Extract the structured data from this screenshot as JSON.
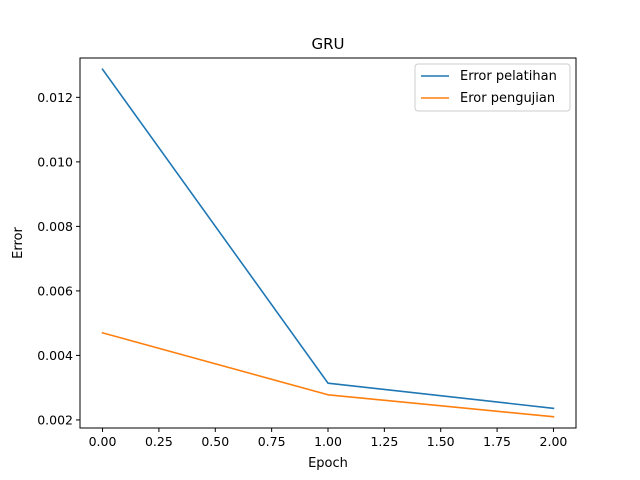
{
  "chart_data": {
    "type": "line",
    "title": "GRU",
    "xlabel": "Epoch",
    "ylabel": "Error",
    "x": [
      0,
      1,
      2
    ],
    "xlim": [
      -0.1,
      2.1
    ],
    "ylim": [
      0.00175,
      0.01322
    ],
    "xticks": [
      0.0,
      0.25,
      0.5,
      0.75,
      1.0,
      1.25,
      1.5,
      1.75,
      2.0
    ],
    "xtick_labels": [
      "0.00",
      "0.25",
      "0.50",
      "0.75",
      "1.00",
      "1.25",
      "1.50",
      "1.75",
      "2.00"
    ],
    "yticks": [
      0.002,
      0.004,
      0.006,
      0.008,
      0.01,
      0.012
    ],
    "ytick_labels": [
      "0.002",
      "0.004",
      "0.006",
      "0.008",
      "0.010",
      "0.012"
    ],
    "grid": false,
    "legend_position": "top-right",
    "series": [
      {
        "name": "Error pelatihan",
        "color": "#1f77b4",
        "values": [
          0.01287,
          0.00314,
          0.00236
        ]
      },
      {
        "name": "Eror pengujian",
        "color": "#ff7f0e",
        "values": [
          0.0047,
          0.00278,
          0.0021
        ]
      }
    ]
  }
}
